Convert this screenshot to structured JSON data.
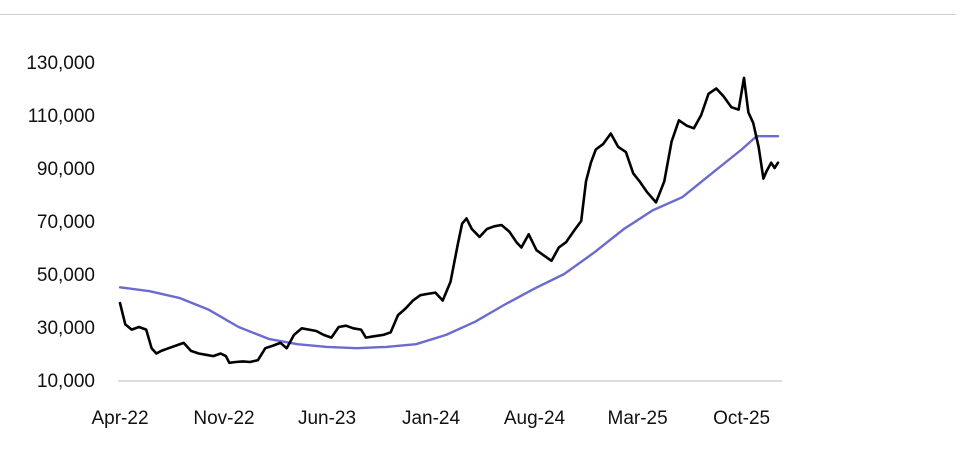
{
  "chart_data": {
    "type": "line",
    "title": "",
    "xlabel": "",
    "ylabel": "",
    "ylim": [
      10000,
      130000
    ],
    "yticks": [
      "130,000",
      "110,000",
      "90,000",
      "70,000",
      "50,000",
      "30,000",
      "10,000"
    ],
    "ytick_values": [
      130000,
      110000,
      90000,
      70000,
      50000,
      30000,
      10000
    ],
    "xticks": [
      "Apr-22",
      "Nov-22",
      "Jun-23",
      "Jan-24",
      "Aug-24",
      "Mar-25",
      "Oct-25"
    ],
    "xtick_dates": [
      "2022-04-01",
      "2022-11-01",
      "2023-06-01",
      "2024-01-01",
      "2024-08-01",
      "2025-03-01",
      "2025-10-01"
    ],
    "x_range": [
      "2022-04-01",
      "2025-12-15"
    ],
    "grid": false,
    "legend": "none",
    "series": [
      {
        "color": "#000000",
        "dates": [
          "2022-04-01",
          "2022-04-12",
          "2022-04-25",
          "2022-05-10",
          "2022-05-25",
          "2022-06-05",
          "2022-06-15",
          "2022-06-25",
          "2022-07-10",
          "2022-07-25",
          "2022-08-10",
          "2022-08-25",
          "2022-09-10",
          "2022-09-25",
          "2022-10-10",
          "2022-10-25",
          "2022-11-05",
          "2022-11-12",
          "2022-11-25",
          "2022-12-10",
          "2022-12-25",
          "2023-01-10",
          "2023-01-25",
          "2023-02-10",
          "2023-02-25",
          "2023-03-10",
          "2023-03-25",
          "2023-04-10",
          "2023-04-25",
          "2023-05-10",
          "2023-05-25",
          "2023-06-10",
          "2023-06-25",
          "2023-07-10",
          "2023-07-25",
          "2023-08-10",
          "2023-08-20",
          "2023-09-05",
          "2023-09-25",
          "2023-10-10",
          "2023-10-25",
          "2023-11-10",
          "2023-11-25",
          "2023-12-10",
          "2023-12-25",
          "2024-01-10",
          "2024-01-25",
          "2024-02-10",
          "2024-02-25",
          "2024-03-05",
          "2024-03-14",
          "2024-03-25",
          "2024-04-10",
          "2024-04-25",
          "2024-05-10",
          "2024-05-25",
          "2024-06-10",
          "2024-06-25",
          "2024-07-05",
          "2024-07-20",
          "2024-08-05",
          "2024-08-20",
          "2024-09-05",
          "2024-09-20",
          "2024-10-05",
          "2024-10-20",
          "2024-11-05",
          "2024-11-15",
          "2024-11-25",
          "2024-12-05",
          "2024-12-20",
          "2025-01-05",
          "2025-01-20",
          "2025-02-05",
          "2025-02-20",
          "2025-03-05",
          "2025-03-20",
          "2025-04-08",
          "2025-04-25",
          "2025-05-10",
          "2025-05-25",
          "2025-06-10",
          "2025-06-25",
          "2025-07-10",
          "2025-07-25",
          "2025-08-10",
          "2025-08-25",
          "2025-09-10",
          "2025-09-25",
          "2025-10-06",
          "2025-10-15",
          "2025-10-25",
          "2025-11-05",
          "2025-11-15",
          "2025-11-22",
          "2025-12-01",
          "2025-12-08",
          "2025-12-15"
        ],
        "values": [
          39000,
          31000,
          29000,
          30000,
          29000,
          22000,
          20000,
          21000,
          22000,
          23000,
          24000,
          21000,
          20000,
          19500,
          19000,
          20000,
          19000,
          16500,
          16800,
          17000,
          16800,
          17500,
          22000,
          23000,
          24000,
          22000,
          27000,
          29500,
          29000,
          28500,
          27000,
          26000,
          30000,
          30500,
          29500,
          29000,
          26000,
          26500,
          27000,
          28000,
          34500,
          37000,
          40000,
          42000,
          42500,
          43000,
          40000,
          47000,
          61000,
          69000,
          71000,
          67000,
          64000,
          67000,
          68000,
          68500,
          66000,
          62000,
          60000,
          65000,
          59000,
          57000,
          55000,
          60000,
          62000,
          66000,
          70000,
          85000,
          92000,
          97000,
          99000,
          103000,
          98000,
          96000,
          88000,
          85000,
          81000,
          77000,
          85000,
          100000,
          108000,
          106000,
          105000,
          110000,
          118000,
          120000,
          117000,
          113000,
          112000,
          124000,
          111000,
          107000,
          98000,
          86000,
          89000,
          92000,
          90000,
          92000
        ]
      },
      {
        "color": "#6b6bcf",
        "dates": [
          "2022-04-01",
          "2022-06-01",
          "2022-08-01",
          "2022-10-01",
          "2022-12-01",
          "2023-02-01",
          "2023-04-01",
          "2023-06-01",
          "2023-08-01",
          "2023-10-01",
          "2023-12-01",
          "2024-02-01",
          "2024-04-01",
          "2024-06-01",
          "2024-08-01",
          "2024-10-01",
          "2024-12-01",
          "2025-02-01",
          "2025-04-01",
          "2025-06-01",
          "2025-08-01",
          "2025-10-01",
          "2025-11-01",
          "2025-12-15"
        ],
        "values": [
          45000,
          43500,
          41000,
          36500,
          30000,
          25500,
          23500,
          22500,
          22000,
          22500,
          23500,
          27000,
          32000,
          38500,
          44500,
          50000,
          58000,
          67000,
          74000,
          79000,
          88000,
          97000,
          102000,
          102000
        ]
      }
    ]
  }
}
